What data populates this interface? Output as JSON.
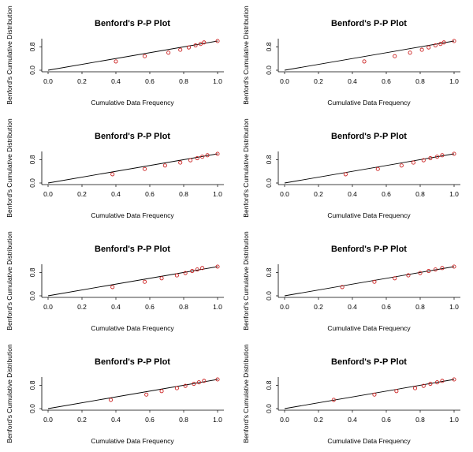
{
  "chart_data": [
    {
      "type": "scatter",
      "title": "Benford's P-P Plot",
      "xlabel": "Cumulative Data Frequency",
      "ylabel": "Benford's Cumulative Distribution",
      "xlim": [
        0,
        1
      ],
      "ylim": [
        0,
        1
      ],
      "x_ticks": [
        "0.0",
        "0.2",
        "0.4",
        "0.6",
        "0.8",
        "1.0"
      ],
      "y_ticks": [
        "0.0",
        "0.8"
      ],
      "reference_line": true,
      "series": [
        {
          "x": [
            0.4,
            0.57,
            0.71,
            0.78,
            0.83,
            0.87,
            0.9,
            0.92,
            1.0
          ],
          "y": [
            0.3,
            0.48,
            0.6,
            0.7,
            0.78,
            0.85,
            0.9,
            0.95,
            1.0
          ]
        }
      ]
    },
    {
      "type": "scatter",
      "title": "Benford's P-P Plot",
      "xlabel": "Cumulative Data Frequency",
      "ylabel": "Benford's Cumulative Distribution",
      "xlim": [
        0,
        1
      ],
      "ylim": [
        0,
        1
      ],
      "x_ticks": [
        "0.0",
        "0.2",
        "0.4",
        "0.6",
        "0.8",
        "1.0"
      ],
      "y_ticks": [
        "0.0",
        "0.8"
      ],
      "reference_line": true,
      "series": [
        {
          "x": [
            0.47,
            0.65,
            0.74,
            0.81,
            0.85,
            0.89,
            0.92,
            0.94,
            1.0
          ],
          "y": [
            0.3,
            0.48,
            0.6,
            0.7,
            0.78,
            0.85,
            0.9,
            0.95,
            1.0
          ]
        }
      ]
    },
    {
      "type": "scatter",
      "title": "Benford's P-P Plot",
      "xlabel": "Cumulative Data Frequency",
      "ylabel": "Benford's Cumulative Distribution",
      "xlim": [
        0,
        1
      ],
      "ylim": [
        0,
        1
      ],
      "x_ticks": [
        "0.0",
        "0.2",
        "0.4",
        "0.6",
        "0.8",
        "1.0"
      ],
      "y_ticks": [
        "0.0",
        "0.8"
      ],
      "reference_line": true,
      "series": [
        {
          "x": [
            0.38,
            0.57,
            0.69,
            0.78,
            0.84,
            0.88,
            0.91,
            0.94,
            1.0
          ],
          "y": [
            0.3,
            0.48,
            0.6,
            0.7,
            0.78,
            0.85,
            0.9,
            0.95,
            1.0
          ]
        }
      ]
    },
    {
      "type": "scatter",
      "title": "Benford's P-P Plot",
      "xlabel": "Cumulative Data Frequency",
      "ylabel": "Benford's Cumulative Distribution",
      "xlim": [
        0,
        1
      ],
      "ylim": [
        0,
        1
      ],
      "x_ticks": [
        "0.0",
        "0.2",
        "0.4",
        "0.6",
        "0.8",
        "1.0"
      ],
      "y_ticks": [
        "0.0",
        "0.8"
      ],
      "reference_line": true,
      "series": [
        {
          "x": [
            0.36,
            0.55,
            0.69,
            0.76,
            0.82,
            0.86,
            0.9,
            0.93,
            1.0
          ],
          "y": [
            0.3,
            0.48,
            0.6,
            0.7,
            0.78,
            0.85,
            0.9,
            0.95,
            1.0
          ]
        }
      ]
    },
    {
      "type": "scatter",
      "title": "Benford's P-P Plot",
      "xlabel": "Cumulative Data Frequency",
      "ylabel": "Benford's Cumulative Distribution",
      "xlim": [
        0,
        1
      ],
      "ylim": [
        0,
        1
      ],
      "x_ticks": [
        "0.0",
        "0.2",
        "0.4",
        "0.6",
        "0.8",
        "1.0"
      ],
      "y_ticks": [
        "0.0",
        "0.8"
      ],
      "reference_line": true,
      "series": [
        {
          "x": [
            0.38,
            0.57,
            0.67,
            0.76,
            0.81,
            0.85,
            0.88,
            0.91,
            1.0
          ],
          "y": [
            0.3,
            0.48,
            0.6,
            0.7,
            0.78,
            0.85,
            0.9,
            0.95,
            1.0
          ]
        }
      ]
    },
    {
      "type": "scatter",
      "title": "Benford's P-P Plot",
      "xlabel": "Cumulative Data Frequency",
      "ylabel": "Benford's Cumulative Distribution",
      "xlim": [
        0,
        1
      ],
      "ylim": [
        0,
        1
      ],
      "x_ticks": [
        "0.0",
        "0.2",
        "0.4",
        "0.6",
        "0.8",
        "1.0"
      ],
      "y_ticks": [
        "0.0",
        "0.8"
      ],
      "reference_line": true,
      "series": [
        {
          "x": [
            0.34,
            0.53,
            0.65,
            0.73,
            0.8,
            0.85,
            0.89,
            0.93,
            1.0
          ],
          "y": [
            0.3,
            0.48,
            0.6,
            0.7,
            0.78,
            0.85,
            0.9,
            0.95,
            1.0
          ]
        }
      ]
    },
    {
      "type": "scatter",
      "title": "Benford's P-P Plot",
      "xlabel": "Cumulative Data Frequency",
      "ylabel": "Benford's Cumulative Distribution",
      "xlim": [
        0,
        1
      ],
      "ylim": [
        0,
        1
      ],
      "x_ticks": [
        "0.0",
        "0.2",
        "0.4",
        "0.6",
        "0.8",
        "1.0"
      ],
      "y_ticks": [
        "0.0",
        "0.8"
      ],
      "reference_line": true,
      "series": [
        {
          "x": [
            0.37,
            0.58,
            0.67,
            0.76,
            0.81,
            0.86,
            0.89,
            0.92,
            1.0
          ],
          "y": [
            0.3,
            0.48,
            0.6,
            0.7,
            0.78,
            0.85,
            0.9,
            0.95,
            1.0
          ]
        }
      ]
    },
    {
      "type": "scatter",
      "title": "Benford's P-P Plot",
      "xlabel": "Cumulative Data Frequency",
      "ylabel": "Benford's Cumulative Distribution",
      "xlim": [
        0,
        1
      ],
      "ylim": [
        0,
        1
      ],
      "x_ticks": [
        "0.0",
        "0.2",
        "0.4",
        "0.6",
        "0.8",
        "1.0"
      ],
      "y_ticks": [
        "0.0",
        "0.8"
      ],
      "reference_line": true,
      "series": [
        {
          "x": [
            0.29,
            0.53,
            0.66,
            0.77,
            0.82,
            0.86,
            0.9,
            0.93,
            1.0
          ],
          "y": [
            0.3,
            0.48,
            0.6,
            0.7,
            0.78,
            0.85,
            0.9,
            0.95,
            1.0
          ]
        }
      ]
    }
  ],
  "colors": {
    "points": "#cc2222",
    "axes": "#000000",
    "line": "#000000"
  }
}
